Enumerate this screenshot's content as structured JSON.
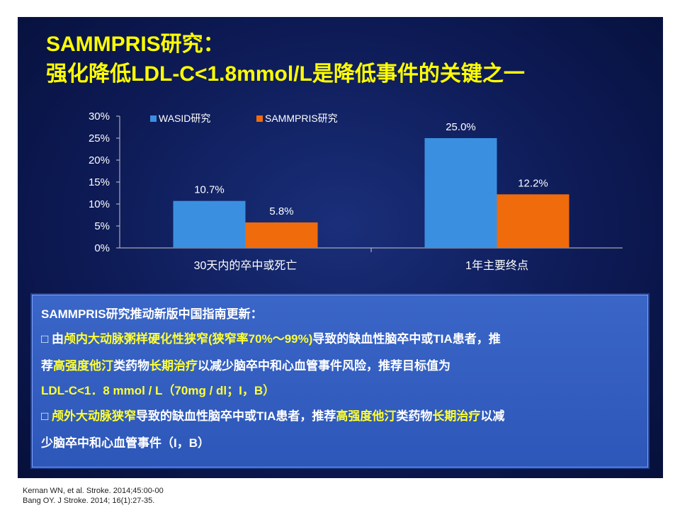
{
  "title": {
    "line1": "SAMMPRIS研究：",
    "line2": "强化降低LDL-C<1.8mmol/L是降低事件的关键之一"
  },
  "chart_data": {
    "type": "bar",
    "categories": [
      "30天内的卒中或死亡",
      "1年主要终点"
    ],
    "series": [
      {
        "name": "WASID研究",
        "values": [
          10.7,
          25.0
        ],
        "labels": [
          "10.7%",
          "25.0%"
        ],
        "color": "#3b8fe0"
      },
      {
        "name": "SAMMPRIS研究",
        "values": [
          5.8,
          12.2
        ],
        "labels": [
          "5.8%",
          "12.2%"
        ],
        "color": "#f06b0c"
      }
    ],
    "ylim": [
      0,
      30
    ],
    "yticks": [
      "0%",
      "5%",
      "10%",
      "15%",
      "20%",
      "25%",
      "30%"
    ],
    "grid": false,
    "legend": "top-left"
  },
  "info": {
    "heading": "SAMMPRIS研究推动新版中国指南更新：",
    "bullet": "□",
    "l1a": "由",
    "l1b": "颅内大动脉粥样硬化性狭窄(狭窄率70%～99%)",
    "l1c": "导致的缺血性脑卒中或TIA患者，推",
    "l2a": "荐",
    "l2b": "高强度他汀",
    "l2c": "类药物",
    "l2d": "长期治疗",
    "l2e": "以减少脑卒中和心血管事件风险，推荐目标值为",
    "l3": "LDL-C<1．8 mmol / L（70mg / dl；I，B）",
    "l4a": "颅外大动脉狭窄",
    "l4b": "导致的缺血性脑卒中或TIA患者，推荐",
    "l4c": "高强度他汀",
    "l4d": "类药物",
    "l4e": "长期治疗",
    "l4f": "以减",
    "l5": "少脑卒中和心血管事件（I，B）"
  },
  "references": {
    "ref1": "Kernan WN, et al. Stroke. 2014;45:00-00",
    "ref2": "Bang OY. J Stroke. 2014; 16(1):27-35."
  },
  "colors": {
    "title": "#ffff00",
    "highlight": "#ffff33",
    "background": "#0d1a55",
    "infobox": "#3a66c8"
  }
}
